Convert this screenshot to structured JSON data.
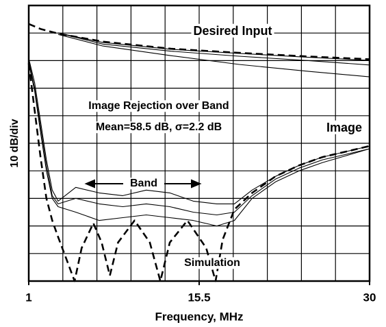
{
  "chart_data": {
    "type": "line",
    "xlabel": "Frequency, MHz",
    "ylabel": "10 dB/div",
    "xlim": [
      1,
      30
    ],
    "xticks": [
      1,
      15.5,
      30
    ],
    "xgrid": [
      1,
      3.9,
      6.8,
      9.7,
      12.6,
      15.5,
      18.4,
      21.3,
      24.2,
      27.1,
      30
    ],
    "ylim": [
      0,
      100
    ],
    "ygrid": [
      0,
      10,
      20,
      30,
      40,
      50,
      60,
      70,
      80,
      90,
      100
    ],
    "grid": true,
    "annotations": [
      "Desired Input",
      "Image Rejection over Band",
      "Mean=58.5 dB, σ=2.2 dB",
      "Image",
      "Band",
      "Simulation"
    ],
    "series": [
      {
        "color": "#000000",
        "dashed": false,
        "x": [
          3.5,
          7.3,
          13.1,
          18.9,
          24.8,
          30
        ],
        "values": [
          90.0,
          86.6,
          84.1,
          82.6,
          81.2,
          80.1
        ]
      },
      {
        "color": "#000000",
        "dashed": false,
        "x": [
          3.5,
          7.3,
          13.1,
          18.9,
          24.8,
          30
        ],
        "values": [
          90.0,
          86.0,
          83.4,
          81.6,
          80.0,
          78.4
        ]
      },
      {
        "color": "#000000",
        "dashed": false,
        "x": [
          3.5,
          7.3,
          13.1,
          18.9,
          24.8,
          30
        ],
        "values": [
          89.5,
          85.3,
          81.8,
          78.6,
          76.1,
          74.1
        ]
      },
      {
        "color": "#000000",
        "dashed": true,
        "x": [
          1,
          2,
          3.5,
          7.3,
          13.1,
          18.9,
          24.8,
          30
        ],
        "values": [
          93.3,
          91.5,
          89.8,
          86.9,
          84.3,
          82.8,
          81.5,
          80.5
        ]
      },
      {
        "color": "#000000",
        "dashed": false,
        "x": [
          1,
          1.5,
          2,
          2.5,
          3,
          3.5,
          5,
          7,
          9,
          11,
          13,
          15,
          17,
          18.5,
          20,
          22,
          24,
          26,
          28,
          30
        ],
        "values": [
          80.8,
          72,
          58,
          44,
          33,
          29,
          34,
          32,
          31,
          33,
          32,
          29,
          28,
          28,
          33,
          38,
          42,
          45,
          47,
          49
        ]
      },
      {
        "color": "#000000",
        "dashed": false,
        "x": [
          1,
          1.5,
          2,
          2.5,
          3,
          3.5,
          5,
          7,
          9,
          11,
          13,
          15,
          17,
          18.5,
          20,
          22,
          24,
          26,
          28,
          30
        ],
        "values": [
          80,
          70,
          56,
          42,
          31,
          28,
          30,
          28,
          27,
          28,
          27,
          25,
          24,
          25,
          31,
          37,
          41,
          44,
          46,
          48
        ]
      },
      {
        "color": "#000000",
        "dashed": false,
        "x": [
          1,
          1.5,
          2,
          2.5,
          3,
          3.5,
          5,
          7,
          9,
          11,
          13,
          15,
          17,
          18.5,
          20,
          22,
          24,
          26,
          28,
          30
        ],
        "values": [
          79,
          69,
          54,
          40,
          30,
          27,
          25,
          22,
          23,
          24,
          23,
          22,
          20,
          22,
          30,
          36,
          40,
          43,
          45.5,
          48
        ]
      },
      {
        "color": "#000000",
        "dashed": true,
        "x": [
          1,
          1.5,
          2,
          2.5,
          3,
          3.5,
          4.2,
          4.9,
          5.5,
          6.5,
          7.2,
          7.9,
          8.6,
          10,
          11.3,
          12.2,
          13,
          14.5,
          16.1,
          16.9,
          17.5,
          18.5,
          20,
          22,
          24,
          26,
          28,
          30
        ],
        "values": [
          79,
          62,
          45,
          30,
          22,
          16,
          8,
          0,
          12,
          21,
          14,
          2,
          14,
          22,
          14,
          0,
          14,
          22,
          12,
          0,
          15,
          26,
          32,
          38,
          42,
          45,
          47,
          49
        ]
      }
    ]
  }
}
